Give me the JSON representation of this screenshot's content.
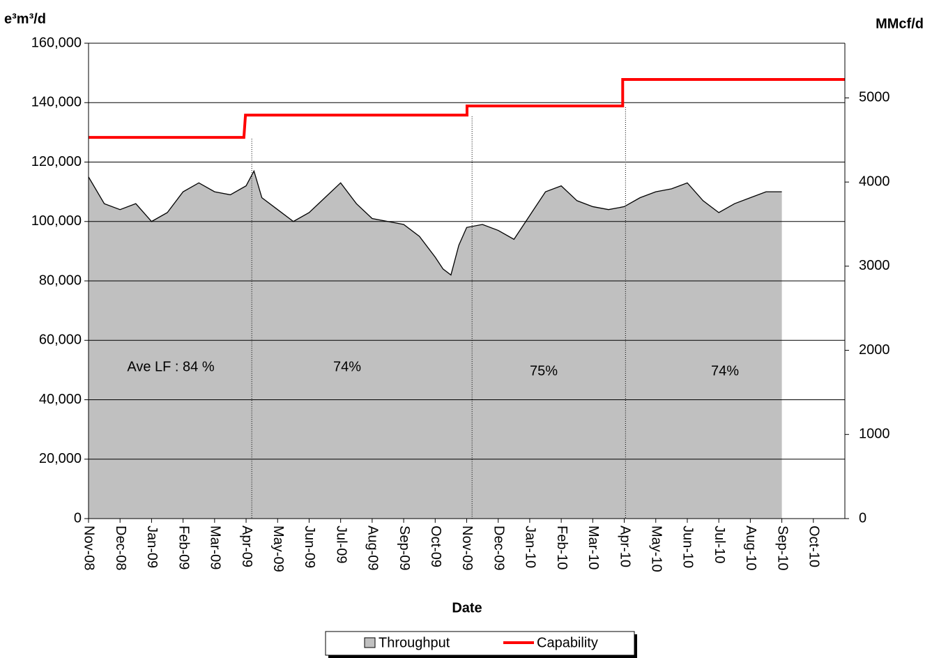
{
  "chart_data": {
    "type": "area-line",
    "y_label": "e³m³/d",
    "y2_label": "MMcf/d",
    "x_label": "Date",
    "xlim": [
      0,
      24
    ],
    "xticks": [
      {
        "value": 0,
        "label": "Nov-08"
      },
      {
        "value": 1,
        "label": "Dec-08"
      },
      {
        "value": 2,
        "label": "Jan-09"
      },
      {
        "value": 3,
        "label": "Feb-09"
      },
      {
        "value": 4,
        "label": "Mar-09"
      },
      {
        "value": 5,
        "label": "Apr-09"
      },
      {
        "value": 6,
        "label": "May-09"
      },
      {
        "value": 7,
        "label": "Jun-09"
      },
      {
        "value": 8,
        "label": "Jul-09"
      },
      {
        "value": 9,
        "label": "Aug-09"
      },
      {
        "value": 10,
        "label": "Sep-09"
      },
      {
        "value": 11,
        "label": "Oct-09"
      },
      {
        "value": 12,
        "label": "Nov-09"
      },
      {
        "value": 13,
        "label": "Dec-09"
      },
      {
        "value": 14,
        "label": "Jan-10"
      },
      {
        "value": 15,
        "label": "Feb-10"
      },
      {
        "value": 16,
        "label": "Mar-10"
      },
      {
        "value": 17,
        "label": "Apr-10"
      },
      {
        "value": 18,
        "label": "May-10"
      },
      {
        "value": 19,
        "label": "Jun-10"
      },
      {
        "value": 20,
        "label": "Jul-10"
      },
      {
        "value": 21,
        "label": "Aug-10"
      },
      {
        "value": 22,
        "label": "Sep-10"
      },
      {
        "value": 23,
        "label": "Oct-10"
      }
    ],
    "ylim": [
      0,
      160000
    ],
    "yticks": [
      0,
      {
        "value": 20000,
        "label": "20,000"
      },
      {
        "value": 40000,
        "label": "40,000"
      },
      {
        "value": 60000,
        "label": "60,000"
      },
      {
        "value": 80000,
        "label": "80,000"
      },
      {
        "value": 100000,
        "label": "100,000"
      },
      {
        "value": 120000,
        "label": "120,000"
      },
      {
        "value": 140000,
        "label": "140,000"
      },
      {
        "value": 160000,
        "label": "160,000"
      }
    ],
    "y2lim": [
      0,
      5650
    ],
    "y2ticks": [
      0,
      1000,
      2000,
      3000,
      4000,
      5000
    ],
    "grid": true,
    "series": [
      {
        "name": "Throughput",
        "color": "#c0c0c0",
        "style": "area",
        "x": [
          0,
          0.5,
          1,
          1.5,
          2,
          2.5,
          3,
          3.5,
          4,
          4.5,
          5,
          5.25,
          5.5,
          6,
          6.5,
          7,
          7.5,
          8,
          8.5,
          9,
          9.5,
          10,
          10.5,
          11,
          11.25,
          11.5,
          11.75,
          12,
          12.5,
          13,
          13.5,
          14,
          14.5,
          15,
          15.5,
          16,
          16.5,
          17,
          17.5,
          18,
          18.5,
          19,
          19.5,
          20,
          20.5,
          21,
          21.5,
          22
        ],
        "values": [
          115000,
          106000,
          104000,
          106000,
          100000,
          103000,
          110000,
          113000,
          110000,
          109000,
          112000,
          117000,
          108000,
          104000,
          100000,
          103000,
          108000,
          113000,
          106000,
          101000,
          100000,
          99000,
          95000,
          88000,
          84000,
          82000,
          92000,
          98000,
          99000,
          97000,
          94000,
          102000,
          110000,
          112000,
          107000,
          105000,
          104000,
          105000,
          108000,
          110000,
          111000,
          113000,
          107000,
          103000,
          106000,
          108000,
          110000,
          110000
        ]
      },
      {
        "name": "Capability",
        "color": "#ff0000",
        "style": "line",
        "x": [
          0,
          4.93,
          4.98,
          12.01,
          12.01,
          16.95,
          16.95,
          24
        ],
        "values": [
          128300,
          128300,
          135800,
          135800,
          138900,
          138900,
          147800,
          147800
        ]
      }
    ],
    "period_boundaries": [
      5.18,
      12.17,
      17.04
    ],
    "annotations": [
      "Ave LF : 84 %",
      "74%",
      "75%",
      "74%"
    ]
  }
}
